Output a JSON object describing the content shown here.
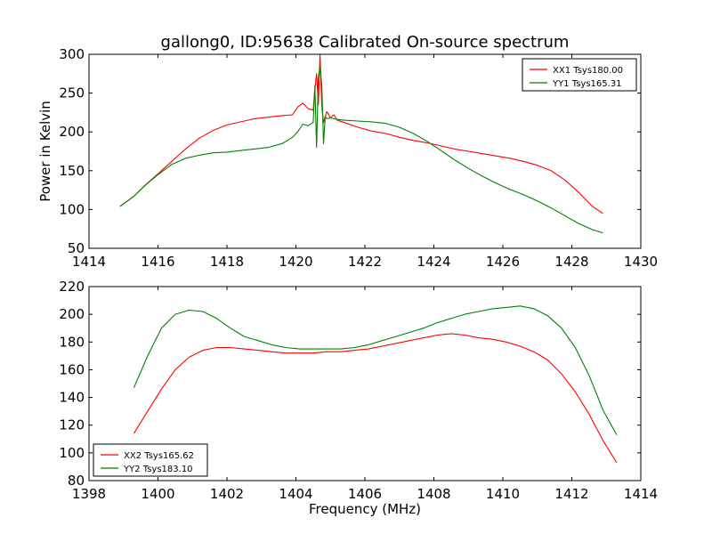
{
  "chart_data": [
    {
      "type": "line",
      "title": "gallong0, ID:95638 Calibrated On-source spectrum",
      "xlabel": "",
      "ylabel": "Power in Kelvin",
      "xlim": [
        1414,
        1430
      ],
      "ylim": [
        50,
        300
      ],
      "xticks": [
        1414,
        1416,
        1418,
        1420,
        1422,
        1424,
        1426,
        1428,
        1430
      ],
      "yticks": [
        50,
        100,
        150,
        200,
        250,
        300
      ],
      "legend": "top-right",
      "grid": false,
      "series": [
        {
          "name": "XX1 Tsys180.00",
          "color": "#ff0000",
          "x": [
            1414.9,
            1415.3,
            1415.6,
            1416.0,
            1416.4,
            1416.8,
            1417.2,
            1417.6,
            1418.0,
            1418.4,
            1418.8,
            1419.2,
            1419.6,
            1419.9,
            1420.05,
            1420.2,
            1420.35,
            1420.5,
            1420.55,
            1420.6,
            1420.65,
            1420.7,
            1420.75,
            1420.8,
            1420.85,
            1420.9,
            1421.0,
            1421.1,
            1421.2,
            1421.4,
            1421.8,
            1422.2,
            1422.6,
            1423.0,
            1423.4,
            1423.8,
            1424.2,
            1424.6,
            1425.0,
            1425.4,
            1425.8,
            1426.2,
            1426.6,
            1427.0,
            1427.4,
            1427.8,
            1428.2,
            1428.6,
            1428.9
          ],
          "y": [
            104,
            117,
            130,
            146,
            162,
            178,
            192,
            202,
            209,
            213,
            217,
            219,
            221,
            222,
            232,
            237,
            230,
            228,
            255,
            275,
            235,
            300,
            233,
            212,
            220,
            226,
            218,
            222,
            215,
            212,
            206,
            201,
            198,
            193,
            189,
            186,
            182,
            178,
            175,
            172,
            169,
            166,
            162,
            157,
            150,
            138,
            122,
            104,
            95
          ]
        },
        {
          "name": "YY1 Tsys165.31",
          "color": "#008000",
          "x": [
            1414.9,
            1415.3,
            1415.6,
            1416.0,
            1416.4,
            1416.8,
            1417.2,
            1417.6,
            1418.0,
            1418.4,
            1418.8,
            1419.2,
            1419.6,
            1419.9,
            1420.05,
            1420.2,
            1420.35,
            1420.5,
            1420.55,
            1420.6,
            1420.65,
            1420.7,
            1420.75,
            1420.8,
            1420.85,
            1420.9,
            1421.0,
            1421.1,
            1421.2,
            1421.4,
            1421.8,
            1422.2,
            1422.6,
            1423.0,
            1423.4,
            1423.8,
            1424.2,
            1424.6,
            1425.0,
            1425.4,
            1425.8,
            1426.2,
            1426.6,
            1427.0,
            1427.4,
            1427.8,
            1428.2,
            1428.6,
            1428.9
          ],
          "y": [
            104,
            117,
            130,
            145,
            158,
            166,
            170,
            173,
            174,
            176,
            178,
            180,
            185,
            193,
            200,
            210,
            208,
            212,
            260,
            180,
            270,
            285,
            260,
            185,
            220,
            217,
            218,
            217,
            216,
            215,
            214,
            213,
            211,
            206,
            198,
            188,
            176,
            164,
            153,
            143,
            134,
            126,
            119,
            111,
            102,
            92,
            82,
            74,
            70
          ]
        }
      ]
    },
    {
      "type": "line",
      "title": "",
      "xlabel": "Frequency (MHz)",
      "ylabel": "",
      "xlim": [
        1398,
        1414
      ],
      "ylim": [
        80,
        220
      ],
      "xticks": [
        1398,
        1400,
        1402,
        1404,
        1406,
        1408,
        1410,
        1412,
        1414
      ],
      "yticks": [
        80,
        100,
        120,
        140,
        160,
        180,
        200,
        220
      ],
      "legend": "bottom-left",
      "grid": false,
      "series": [
        {
          "name": "XX2 Tsys165.62",
          "color": "#ff0000",
          "x": [
            1399.3,
            1399.7,
            1400.1,
            1400.5,
            1400.9,
            1401.3,
            1401.7,
            1402.1,
            1402.5,
            1402.9,
            1403.3,
            1403.7,
            1404.1,
            1404.5,
            1404.9,
            1405.3,
            1405.7,
            1406.1,
            1406.5,
            1406.9,
            1407.3,
            1407.7,
            1408.1,
            1408.5,
            1408.9,
            1409.3,
            1409.7,
            1410.1,
            1410.5,
            1410.9,
            1411.3,
            1411.7,
            1412.1,
            1412.5,
            1412.9,
            1413.3
          ],
          "y": [
            114,
            130,
            146,
            160,
            169,
            174,
            176,
            176,
            175,
            174,
            173,
            172,
            172,
            172,
            173,
            173,
            174,
            175,
            177,
            179,
            181,
            183,
            185,
            186,
            185,
            183,
            182,
            180,
            177,
            173,
            167,
            157,
            144,
            128,
            109,
            93
          ]
        },
        {
          "name": "YY2 Tsys183.10",
          "color": "#008000",
          "x": [
            1399.3,
            1399.7,
            1400.1,
            1400.5,
            1400.9,
            1401.3,
            1401.7,
            1402.1,
            1402.5,
            1402.9,
            1403.3,
            1403.7,
            1404.1,
            1404.5,
            1404.9,
            1405.3,
            1405.7,
            1406.1,
            1406.5,
            1406.9,
            1407.3,
            1407.7,
            1408.1,
            1408.5,
            1408.9,
            1409.3,
            1409.7,
            1410.1,
            1410.5,
            1410.9,
            1411.3,
            1411.7,
            1412.1,
            1412.5,
            1412.9,
            1413.3
          ],
          "y": [
            147,
            170,
            190,
            200,
            203,
            202,
            197,
            190,
            184,
            181,
            178,
            176,
            175,
            175,
            175,
            175,
            176,
            178,
            181,
            184,
            187,
            190,
            194,
            197,
            200,
            202,
            204,
            205,
            206,
            204,
            199,
            190,
            176,
            156,
            131,
            113
          ]
        }
      ]
    }
  ]
}
